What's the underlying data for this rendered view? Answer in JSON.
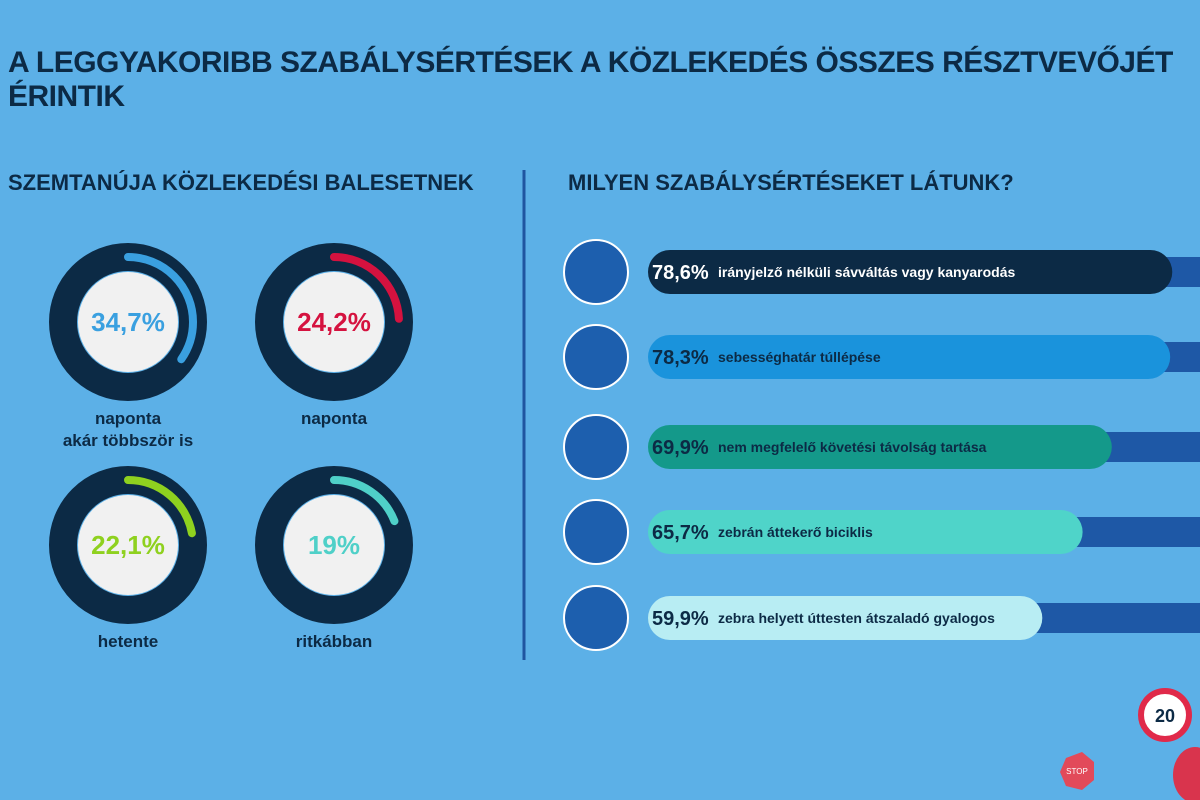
{
  "title": "A LEGGYAKORIBB SZABÁLYSÉRTÉSEK A KÖZLEKEDÉS ÖSSZES RÉSZTVEVŐJÉT ÉRINTIK",
  "chart_data": [
    {
      "type": "donut",
      "title": "SZEMTANÚJA KÖZLEKEDÉSI BALESETNEK",
      "categories": [
        "naponta\nakár többször is",
        "naponta",
        "hetente",
        "ritkábban"
      ],
      "values": [
        34.7,
        24.2,
        22.1,
        19
      ],
      "value_labels": [
        "34,7%",
        "24,2%",
        "22,1%",
        "19%"
      ],
      "colors": [
        "#3aa0e0",
        "#d5123f",
        "#8fd11f",
        "#4fd0c8"
      ],
      "ylim": [
        0,
        100
      ]
    },
    {
      "type": "bar",
      "title": "MILYEN SZABÁLYSÉRTÉSEKET LÁTUNK?",
      "categories": [
        "irányjelző nélküli sávváltás vagy kanyarodás",
        "sebességhatár túllépése",
        "nem megfelelő követési távolság tartása",
        "zebrán áttekerő biciklis",
        "zebra helyett úttesten átszaladó gyalogos"
      ],
      "values": [
        78.6,
        78.3,
        69.9,
        65.7,
        59.9
      ],
      "value_labels": [
        "78,6%",
        "78,3%",
        "69,9%",
        "65,7%",
        "59,9%"
      ],
      "colors": [
        "#0c2a45",
        "#1a93dc",
        "#14998a",
        "#4fd4c9",
        "#b8edf3"
      ],
      "xlim": [
        0,
        100
      ]
    }
  ],
  "signs": [
    "20",
    "STOP"
  ]
}
